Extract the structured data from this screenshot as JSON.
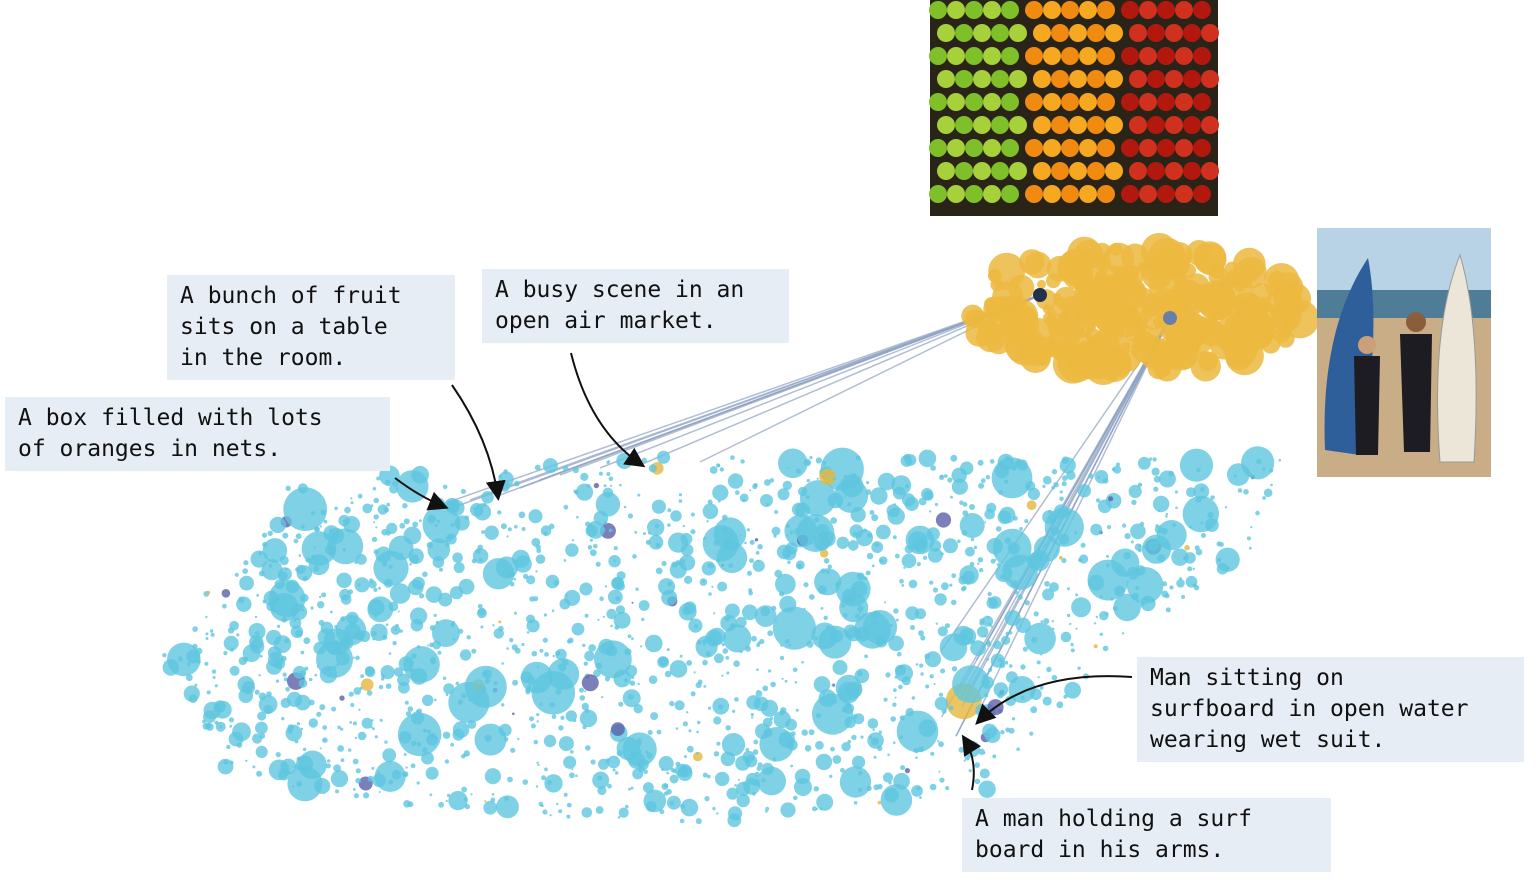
{
  "captions": [
    {
      "lines": [
        "A bunch of fruit",
        "sits on a table",
        "in the room."
      ]
    },
    {
      "lines": [
        "A busy scene in an",
        "open air market."
      ]
    },
    {
      "lines": [
        "A box filled with lots",
        "of oranges in nets."
      ]
    },
    {
      "lines": [
        "Man sitting on",
        "surfboard in open water",
        "wearing wet suit."
      ]
    },
    {
      "lines": [
        "A man holding a surf",
        "board in his arms."
      ]
    }
  ]
}
